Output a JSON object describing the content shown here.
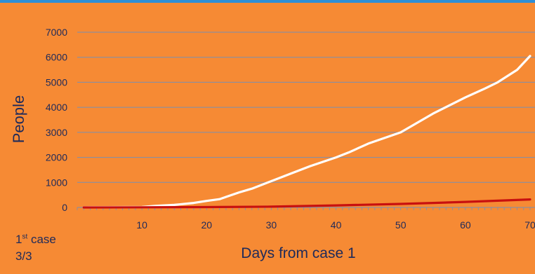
{
  "chart_data": {
    "type": "line",
    "title": "",
    "xlabel": "Days from case 1",
    "ylabel": "People",
    "xlim": [
      0,
      70
    ],
    "ylim": [
      0,
      7000
    ],
    "x_ticks": [
      10,
      20,
      30,
      40,
      50,
      60,
      70
    ],
    "y_ticks": [
      0,
      1000,
      2000,
      3000,
      4000,
      5000,
      6000,
      7000
    ],
    "grid": "horizontal",
    "colors": {
      "background": "#F68A34",
      "grid": "#7A8FB0",
      "text": "#1e2a5a",
      "accent_bar": "#2E8FD6"
    },
    "series": [
      {
        "color": "#FFFFFF",
        "x": [
          1,
          5,
          10,
          12,
          15,
          18,
          20,
          22,
          23,
          25,
          27,
          30,
          33,
          36,
          40,
          42,
          45,
          50,
          55,
          60,
          63,
          65,
          68,
          70
        ],
        "y": [
          5,
          10,
          20,
          60,
          100,
          180,
          260,
          330,
          420,
          600,
          750,
          1050,
          1350,
          1650,
          2000,
          2200,
          2550,
          3000,
          3750,
          4400,
          4750,
          5000,
          5500,
          6050
        ]
      },
      {
        "color": "#C8100F",
        "x": [
          1,
          10,
          20,
          30,
          40,
          50,
          55,
          60,
          65,
          70
        ],
        "y": [
          0,
          5,
          15,
          30,
          80,
          140,
          180,
          220,
          270,
          320
        ]
      }
    ]
  },
  "annotation": {
    "line1_num": "1",
    "line1_sup": "st",
    "line1_rest": " case",
    "line2": "3/3"
  }
}
